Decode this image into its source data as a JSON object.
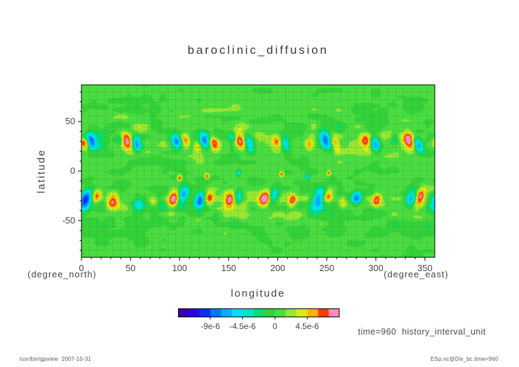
{
  "title": "baroclinic_diffusion",
  "axes": {
    "xlabel": "longitude",
    "ylabel": "latitude",
    "x_unit": "(degree_east)",
    "y_unit": "(degree_north)",
    "x_ticks": [
      0,
      50,
      100,
      150,
      200,
      250,
      300,
      350
    ],
    "y_ticks": [
      -50,
      0,
      50
    ],
    "x_range": [
      0,
      360
    ],
    "y_range": [
      -87,
      87
    ]
  },
  "annotations": {
    "time_label": "time=960  history_interval_unit"
  },
  "footer": {
    "left": "/usr/bin/gpview  2007-10-31",
    "right": "ESp.nc@Div_bc,time=960"
  },
  "colorbar": {
    "labels": [
      "-9e-6",
      "-4.5e-6",
      "0",
      "4.5e-6"
    ],
    "label_values": [
      -9,
      -4.5,
      0,
      4.5
    ],
    "min": -13.5,
    "max": 9,
    "step": 1.5,
    "colors": [
      "#3a00a8",
      "#2a00e6",
      "#0030ff",
      "#0078ff",
      "#00b0ff",
      "#00e0ff",
      "#00e6c0",
      "#00dc78",
      "#35d13a",
      "#4adc41",
      "#96e632",
      "#d8ec14",
      "#ffb400",
      "#ff3c00",
      "#ff8cbe"
    ]
  },
  "chart_data": {
    "type": "heatmap",
    "title": "baroclinic_diffusion",
    "xlabel": "longitude (degree_east)",
    "ylabel": "latitude (degree_north)",
    "x_range": [
      0,
      360
    ],
    "y_range": [
      -87,
      87
    ],
    "value_units": "1e-6",
    "contour_levels_1e6": [
      -13.5,
      -12,
      -10.5,
      -9,
      -7.5,
      -6,
      -4.5,
      -3,
      -1.5,
      0,
      1.5,
      3,
      4.5,
      6,
      7.5,
      9
    ],
    "field_model": {
      "background_value_1e6": 0.4,
      "noise_amp_1e6": 2.2,
      "noise_envelope": {
        "floor": 0.25,
        "peak_lat": 38,
        "width_deg": 26
      }
    },
    "anomaly_format": [
      "lon_deg",
      "lat_deg",
      "amplitude_1e-6",
      "sigma_lon_deg",
      "sigma_lat_deg",
      "tilt_deg"
    ],
    "anomalies": [
      [
        3,
        27,
        6.8,
        3,
        5,
        10
      ],
      [
        10,
        30,
        -8.5,
        3.5,
        6,
        20
      ],
      [
        38,
        33,
        -4.5,
        3,
        4,
        0
      ],
      [
        47,
        30,
        7.2,
        4,
        7,
        15
      ],
      [
        56,
        27,
        -8,
        3.5,
        6,
        15
      ],
      [
        97,
        29,
        -8,
        3.5,
        5.5,
        12
      ],
      [
        106,
        31,
        6.6,
        3,
        5,
        12
      ],
      [
        118,
        25,
        4,
        2.5,
        4,
        0
      ],
      [
        126,
        30,
        -8.5,
        3.5,
        6,
        18
      ],
      [
        135,
        28,
        7,
        3.5,
        6,
        18
      ],
      [
        154,
        34,
        -5,
        2.5,
        4,
        0
      ],
      [
        162,
        30,
        8.5,
        4,
        7,
        20
      ],
      [
        171,
        27,
        -8,
        3.5,
        6,
        20
      ],
      [
        199,
        30,
        7,
        3.5,
        5,
        12
      ],
      [
        208,
        27,
        -6.5,
        3,
        5,
        12
      ],
      [
        232,
        27,
        5,
        3,
        4,
        0
      ],
      [
        249,
        32,
        -10,
        4.5,
        8,
        25
      ],
      [
        258,
        28,
        7,
        3.5,
        6,
        25
      ],
      [
        290,
        30,
        7.2,
        4,
        6,
        15
      ],
      [
        299,
        27,
        -8.5,
        3.5,
        6,
        15
      ],
      [
        319,
        34,
        -4,
        2.5,
        4,
        0
      ],
      [
        334,
        30,
        8.5,
        4,
        7,
        20
      ],
      [
        343,
        27,
        -9,
        3.5,
        6,
        20
      ],
      [
        5,
        -28,
        -10.5,
        4.5,
        8,
        -25
      ],
      [
        15,
        -25,
        6.6,
        3.5,
        5,
        -15
      ],
      [
        32,
        -30,
        7,
        4,
        6,
        -15
      ],
      [
        58,
        -33,
        -4.5,
        3.5,
        5,
        0
      ],
      [
        73,
        -30,
        4.2,
        3,
        4,
        0
      ],
      [
        94,
        -28,
        8.5,
        4,
        7,
        -20
      ],
      [
        103,
        -25,
        -8.5,
        3.5,
        6,
        -20
      ],
      [
        121,
        -30,
        -8,
        3.5,
        6,
        -15
      ],
      [
        130,
        -27,
        7,
        3.5,
        5,
        -15
      ],
      [
        151,
        -29,
        7.2,
        4,
        6,
        -15
      ],
      [
        160,
        -26,
        -7,
        3,
        5,
        -15
      ],
      [
        187,
        -28,
        8.5,
        4,
        6,
        -20
      ],
      [
        196,
        -25,
        -8,
        3.5,
        5,
        -20
      ],
      [
        215,
        -30,
        6.8,
        3,
        5,
        -10
      ],
      [
        242,
        -28,
        -9.5,
        4.5,
        7,
        -25
      ],
      [
        251,
        -25,
        7,
        3.5,
        5,
        -20
      ],
      [
        266,
        -32,
        4.2,
        2.5,
        4,
        0
      ],
      [
        280,
        -28,
        -7,
        3.5,
        5,
        -10
      ],
      [
        301,
        -29,
        6.2,
        3,
        5,
        -10
      ],
      [
        336,
        -28,
        -9,
        4,
        6,
        -20
      ],
      [
        345,
        -25,
        8.5,
        3.5,
        6,
        -20
      ],
      [
        100,
        -7,
        7.4,
        1.6,
        2.2,
        0
      ],
      [
        128,
        -5,
        6.8,
        1.5,
        2,
        0
      ],
      [
        160,
        -2,
        -6.5,
        1.5,
        2,
        0
      ],
      [
        204,
        -3,
        7,
        1.5,
        2,
        0
      ],
      [
        230,
        -6,
        -7,
        1.5,
        2,
        0
      ],
      [
        252,
        -2,
        6.8,
        1.3,
        1.8,
        0
      ]
    ]
  }
}
